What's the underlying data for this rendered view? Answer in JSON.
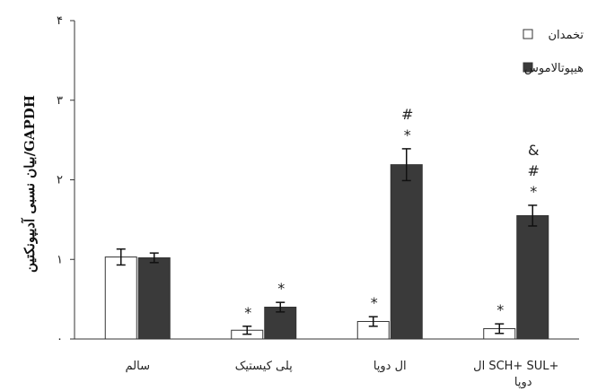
{
  "chart_data": {
    "type": "bar",
    "ylabel": "بیان نسبی آدیپونکتین/GAPDH",
    "ylim": [
      0,
      4
    ],
    "y_ticks": [
      {
        "value": 0,
        "label": "۰"
      },
      {
        "value": 1,
        "label": "۱"
      },
      {
        "value": 2,
        "label": "۲"
      },
      {
        "value": 3,
        "label": "۳"
      },
      {
        "value": 4,
        "label": "۴"
      }
    ],
    "categories": [
      "سالم",
      "پلی کیستیک",
      "ال دوپا",
      "ال SCH+ SUL+"
    ],
    "category_sublabels": [
      "",
      "",
      "",
      "دوپا"
    ],
    "series": [
      {
        "name": "تخمدان",
        "color": "#ffffff",
        "values": [
          1.03,
          0.11,
          0.22,
          0.13
        ],
        "errors": [
          0.1,
          0.05,
          0.06,
          0.06
        ],
        "annotations": [
          [],
          [
            "*"
          ],
          [
            "*"
          ],
          [
            "*"
          ]
        ]
      },
      {
        "name": "هیپوتالاموس",
        "color": "#3a3a3a",
        "values": [
          1.02,
          0.4,
          2.19,
          1.55
        ],
        "errors": [
          0.06,
          0.06,
          0.2,
          0.13
        ],
        "annotations": [
          [],
          [
            "*"
          ],
          [
            "*",
            "#"
          ],
          [
            "*",
            "#",
            "&"
          ]
        ]
      }
    ],
    "legend_position": "top-right",
    "grid": false
  }
}
